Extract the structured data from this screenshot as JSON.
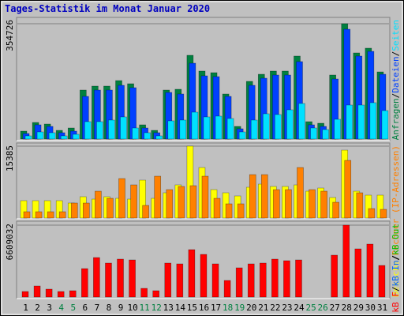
{
  "title": "Tages-Statistik im Monat Januar 2020",
  "categories": [
    "1",
    "2",
    "3",
    "4",
    "5",
    "6",
    "7",
    "8",
    "9",
    "10",
    "11",
    "12",
    "13",
    "14",
    "15",
    "16",
    "17",
    "18",
    "19",
    "20",
    "21",
    "22",
    "23",
    "24",
    "25",
    "26",
    "27",
    "28",
    "29",
    "30",
    "31"
  ],
  "category_colors": [
    "#000000",
    "#000000",
    "#000000",
    "#008040",
    "#008040",
    "#000000",
    "#000000",
    "#000000",
    "#000000",
    "#000000",
    "#008040",
    "#008040",
    "#000000",
    "#000000",
    "#000000",
    "#000000",
    "#000000",
    "#008040",
    "#008040",
    "#000000",
    "#000000",
    "#000000",
    "#000000",
    "#000000",
    "#008040",
    "#008040",
    "#000000",
    "#000000",
    "#000000",
    "#000000",
    "#000000"
  ],
  "separator": "/",
  "chart_data": [
    {
      "type": "bar",
      "ylim": [
        0,
        354726
      ],
      "yticks": [
        354726
      ],
      "series": [
        {
          "name": "Anfragen",
          "color": "#008040",
          "values": [
            24300,
            51030,
            46170,
            26730,
            34020,
            150660,
            162810,
            162810,
            179820,
            170100,
            43740,
            26730,
            150660,
            153090,
            257580,
            208980,
            204120,
            138510,
            38880,
            177390,
            199260,
            208980,
            208980,
            255150,
            53460,
            48600,
            196830,
            354726,
            264870,
            279450,
            206550
          ]
        },
        {
          "name": "Dateien",
          "color": "#0040ff",
          "values": [
            17010,
            43740,
            38880,
            19440,
            24300,
            131220,
            150660,
            150660,
            165240,
            157950,
            34020,
            19440,
            143370,
            138510,
            233280,
            194400,
            191970,
            131220,
            31590,
            165240,
            187110,
            196830,
            196830,
            238140,
            43740,
            38880,
            184680,
            337770,
            255150,
            269730,
            199260
          ]
        },
        {
          "name": "Seiten",
          "color": "#00e0ff",
          "values": [
            9720,
            21870,
            19440,
            9720,
            14580,
            53460,
            53460,
            58320,
            68040,
            34020,
            19440,
            9720,
            55890,
            58320,
            82620,
            68040,
            70470,
            63180,
            21870,
            58320,
            77760,
            75330,
            89910,
            109350,
            34020,
            29160,
            60750,
            104490,
            104490,
            111780,
            87480
          ]
        }
      ]
    },
    {
      "type": "bar",
      "ylim": [
        0,
        15385
      ],
      "yticks": [
        15385
      ],
      "series": [
        {
          "name": "Besuche",
          "color": "#ffff00",
          "values": [
            3718,
            3718,
            3718,
            3718,
            3211,
            4563,
            4056,
            4563,
            4225,
            4056,
            8112,
            4225,
            5408,
            7098,
            15385,
            10816,
            6084,
            5408,
            4732,
            6591,
            7267,
            6760,
            6760,
            7098,
            5746,
            6422,
            4394,
            14534,
            5746,
            4901,
            4901
          ]
        },
        {
          "name": "Rechner (IP-Adressen)",
          "color": "#ff8000",
          "values": [
            1352,
            1352,
            1352,
            1352,
            3211,
            3211,
            5746,
            4225,
            8450,
            7098,
            2704,
            8957,
            6084,
            6760,
            6929,
            8957,
            4225,
            3042,
            3042,
            9295,
            9295,
            6084,
            6084,
            10816,
            6084,
            5746,
            3380,
            12337,
            5408,
            2028,
            1859
          ]
        }
      ]
    },
    {
      "type": "bar",
      "ylim": [
        0,
        6609032
      ],
      "yticks": [
        6609032
      ],
      "series": [
        {
          "name": "kB F",
          "color": "#ff0000",
          "values": [
            508389,
            1016778,
            726270,
            508389,
            581016,
            2614572,
            3631350,
            3122961,
            3486096,
            3413469,
            798897,
            581016,
            3122961,
            3050334,
            4357620,
            3921858,
            3050334,
            1525167,
            2687199,
            3050334,
            3122961,
            3486096,
            3340842,
            3413469,
            0,
            0,
            3849231,
            6609032,
            4430247,
            4866009,
            2904924
          ]
        }
      ],
      "legend_extra": [
        {
          "name": "kB In",
          "color": "#0060ff"
        },
        {
          "name": "kB Out",
          "color": "#00c000"
        }
      ]
    }
  ]
}
